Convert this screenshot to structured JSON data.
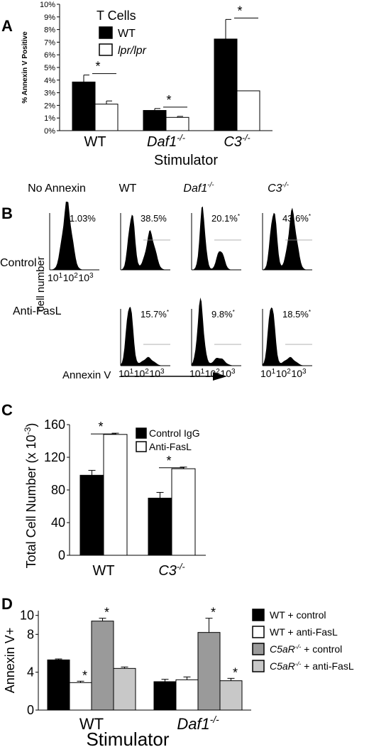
{
  "panels": {
    "A": {
      "letter": "A"
    },
    "B": {
      "letter": "B"
    },
    "C": {
      "letter": "C"
    },
    "D": {
      "letter": "D"
    }
  },
  "chart_data": [
    {
      "panel": "A",
      "type": "bar",
      "ylabel": "% Annexin V Positive",
      "xlabel": "Stimulator",
      "ylim": [
        0,
        10
      ],
      "ytick_labels": [
        "0%",
        "1%",
        "2%",
        "3%",
        "4%",
        "5%",
        "6%",
        "7%",
        "8%",
        "9%",
        "10%"
      ],
      "categories": [
        "WT",
        "Daf1",
        "C3"
      ],
      "category_superscripts": [
        "",
        "-/-",
        "-/-"
      ],
      "legend_title": "T Cells",
      "series": [
        {
          "name": "WT",
          "values": [
            3.85,
            1.6,
            7.25
          ],
          "errors": [
            0.55,
            0.15,
            1.55
          ],
          "color": "#000000"
        },
        {
          "name": "lpr/lpr",
          "values": [
            2.1,
            1.05,
            3.15
          ],
          "errors": [
            0.25,
            0.08,
            0.0
          ],
          "color": "#ffffff"
        }
      ],
      "significance": [
        "*",
        "*",
        "*"
      ]
    },
    {
      "panel": "B",
      "type": "histogram",
      "ylabel": "cell number",
      "xlabel": "Annexin V",
      "x_ticks": [
        "10",
        "1",
        "10",
        "2",
        "10",
        "3"
      ],
      "columns": [
        "No Annexin",
        "WT",
        "Daf1",
        "C3"
      ],
      "column_superscripts": [
        "",
        "",
        "-/-",
        "-/-"
      ],
      "rows": [
        "Control",
        "Anti-FasL"
      ],
      "percentages": [
        [
          "1.03%",
          "38.5%",
          "20.1%",
          "43.6%"
        ],
        [
          "",
          "15.7%",
          "9.8%",
          "18.5%"
        ]
      ],
      "significant": [
        [
          false,
          false,
          true,
          true
        ],
        [
          false,
          true,
          true,
          true
        ]
      ]
    },
    {
      "panel": "C",
      "type": "bar",
      "ylabel": "Total Cell Number (x 10",
      "ylabel_superscript": "-3",
      "ylabel_close": ")",
      "ylim": [
        0,
        160
      ],
      "yticks": [
        0,
        40,
        80,
        120,
        160
      ],
      "categories": [
        "WT",
        "C3"
      ],
      "category_superscripts": [
        "",
        "-/-"
      ],
      "series": [
        {
          "name": "Control IgG",
          "values": [
            98,
            70
          ],
          "errors": [
            6,
            7
          ],
          "color": "#000000"
        },
        {
          "name": "Anti-FasL",
          "values": [
            148,
            106
          ],
          "errors": [
            1.5,
            2
          ],
          "color": "#ffffff"
        }
      ],
      "significance": [
        "*",
        "*"
      ]
    },
    {
      "panel": "D",
      "type": "bar",
      "ylabel": "Annexin V+",
      "xlabel": "Stimulator",
      "ylim": [
        0,
        10.5
      ],
      "yticks": [
        0,
        4,
        8
      ],
      "ytick_labels": [
        "0",
        "4",
        "8"
      ],
      "extra_tick": {
        "value": 10,
        "label": "10"
      },
      "categories": [
        "WT",
        "Daf1"
      ],
      "category_superscripts": [
        "",
        "-/-"
      ],
      "series": [
        {
          "name": "WT + control",
          "values": [
            5.3,
            3.0
          ],
          "errors": [
            0.1,
            0.25
          ],
          "color": "#000000"
        },
        {
          "name": "WT + anti-FasL",
          "values": [
            2.9,
            3.2
          ],
          "errors": [
            0.15,
            0.3
          ],
          "color": "#ffffff"
        },
        {
          "name": "C5aR",
          "name_superscript": "-/-",
          "name_suffix": " + control",
          "values": [
            9.4,
            8.2
          ],
          "errors": [
            0.3,
            1.5
          ],
          "color": "#9a9a9a"
        },
        {
          "name": "C5aR",
          "name_superscript": "-/-",
          "name_suffix": " + anti-FasL",
          "values": [
            4.4,
            3.1
          ],
          "errors": [
            0.15,
            0.25
          ],
          "color": "#c8c8c8"
        }
      ],
      "significance_marks": [
        {
          "category": 0,
          "series": 1,
          "label": "*"
        },
        {
          "category": 0,
          "series": 2,
          "label": "*"
        },
        {
          "category": 1,
          "series": 2,
          "label": "*"
        },
        {
          "category": 1,
          "series": 3,
          "label": "*"
        }
      ]
    }
  ]
}
